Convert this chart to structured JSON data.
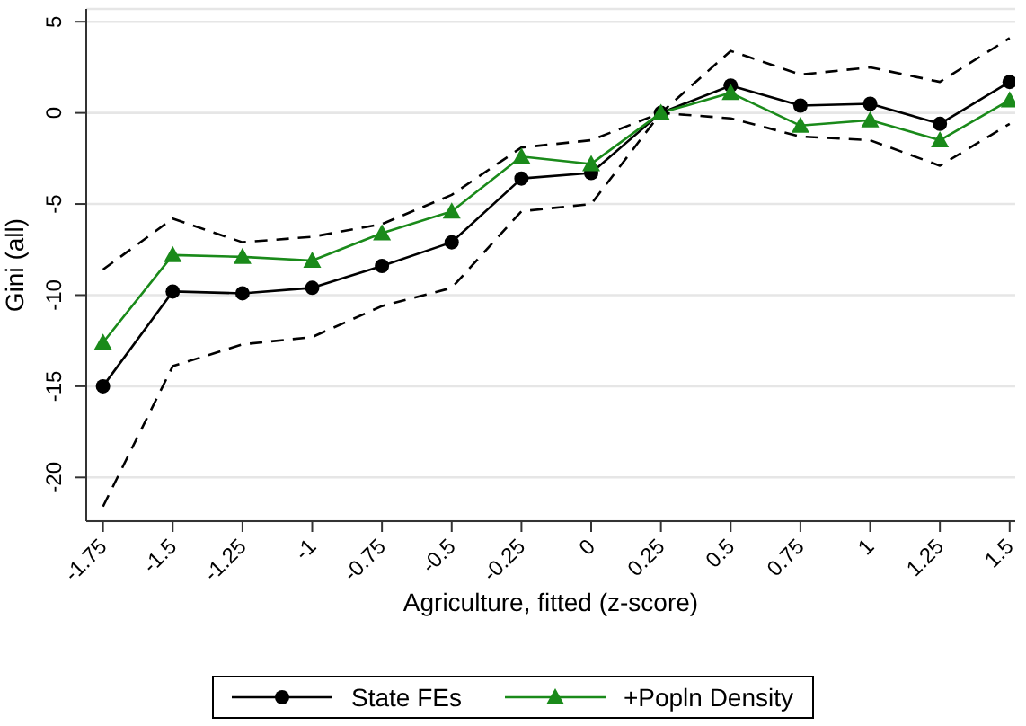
{
  "chart_data": {
    "type": "line",
    "xlabel": "Agriculture, fitted (z-score)",
    "ylabel": "Gini (all)",
    "x": [
      -1.75,
      -1.5,
      -1.25,
      -1,
      -0.75,
      -0.5,
      -0.25,
      0,
      0.25,
      0.5,
      0.75,
      1,
      1.25,
      1.5
    ],
    "series": [
      {
        "color": "#000000",
        "line_style": "dashed",
        "marker": "none",
        "values": [
          -8.6,
          -5.8,
          -7.1,
          -6.8,
          -6.1,
          -4.5,
          -1.9,
          -1.5,
          0,
          3.4,
          2.1,
          2.5,
          1.7,
          4.1
        ]
      },
      {
        "color": "#000000",
        "line_style": "dashed",
        "marker": "none",
        "values": [
          -21.6,
          -13.9,
          -12.7,
          -12.3,
          -10.6,
          -9.6,
          -5.4,
          -5.0,
          0,
          -0.3,
          -1.3,
          -1.5,
          -2.9,
          -0.6
        ]
      },
      {
        "name": "State FEs",
        "color": "#000000",
        "marker": "circle",
        "values": [
          -15.0,
          -9.8,
          -9.9,
          -9.6,
          -8.4,
          -7.1,
          -3.6,
          -3.3,
          0,
          1.5,
          0.4,
          0.5,
          -0.6,
          1.7
        ]
      },
      {
        "name": "+Popln Density",
        "color": "#1a8a1a",
        "marker": "triangle",
        "values": [
          -12.6,
          -7.8,
          -7.9,
          -8.1,
          -6.6,
          -5.4,
          -2.4,
          -2.8,
          0,
          1.1,
          -0.7,
          -0.4,
          -1.5,
          0.7
        ]
      }
    ],
    "xlim": [
      -1.81,
      1.52
    ],
    "ylim": [
      -22.4,
      5.7
    ],
    "xticks": [
      -1.75,
      -1.5,
      -1.25,
      -1,
      -0.75,
      -0.5,
      -0.25,
      0,
      0.25,
      0.5,
      0.75,
      1,
      1.25,
      1.5
    ],
    "yticks": [
      -20,
      -15,
      -10,
      -5,
      0,
      5
    ],
    "grid": "y",
    "legend": "bottom",
    "line_style": "solid"
  }
}
